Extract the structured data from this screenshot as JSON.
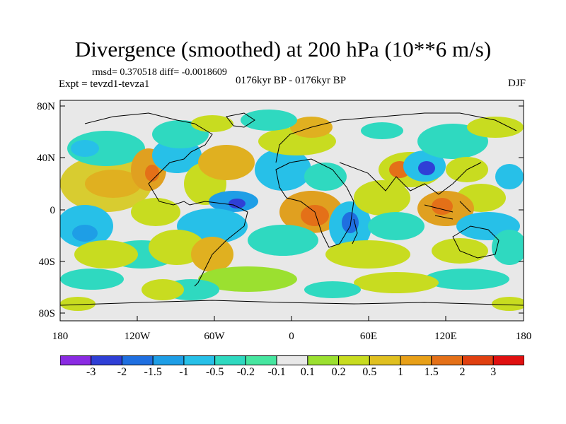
{
  "title": "Divergence (smoothed) at 200 hPa (10**6 m/s)",
  "stats_text": "rmsd= 0.370518 diff= -0.0018609",
  "experiment": "Expt = tevzd1-tevza1",
  "period": "0176kyr BP - 0176kyr BP",
  "season": "DJF",
  "map": {
    "lat_ticks": [
      "80N",
      "40N",
      "0",
      "40S",
      "80S"
    ],
    "lon_ticks": [
      "180",
      "120W",
      "60W",
      "0",
      "60E",
      "120E",
      "180"
    ],
    "lat_range": [
      -90,
      90
    ],
    "lon_range": [
      -180,
      180
    ]
  },
  "colorbar": {
    "labels": [
      "-3",
      "-2",
      "-1.5",
      "-1",
      "-0.5",
      "-0.2",
      "-0.1",
      "0.1",
      "0.2",
      "0.5",
      "1",
      "1.5",
      "2",
      "3"
    ],
    "colors": [
      "#8a2be2",
      "#2f3fd6",
      "#1f6fe0",
      "#1e9ee6",
      "#27c0e8",
      "#2fd9c0",
      "#46e6a0",
      "#e8e8e8",
      "#9be030",
      "#c8dc20",
      "#e0c020",
      "#e8a018",
      "#e47018",
      "#e04010",
      "#e01010"
    ]
  }
}
